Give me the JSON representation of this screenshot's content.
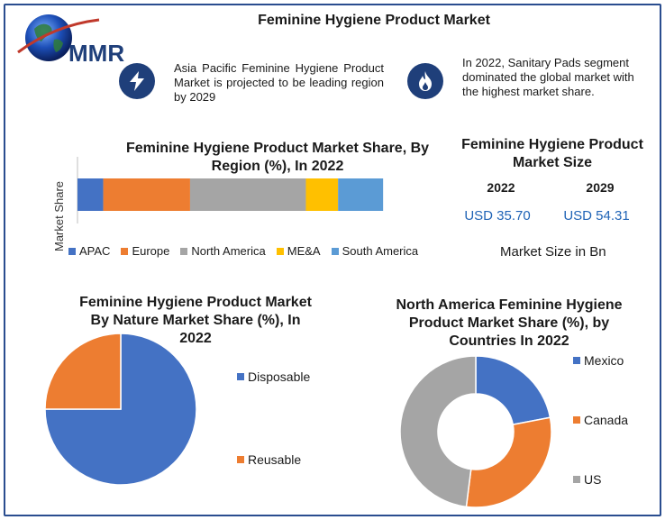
{
  "header": {
    "logo_text": "MMR",
    "title": "Feminine Hygiene Product Market"
  },
  "callouts": [
    {
      "icon": "lightning-bolt-icon",
      "text": "Asia Pacific Feminine Hygiene Product Market is projected to be leading region by 2029"
    },
    {
      "icon": "flame-icon",
      "text": "In 2022, Sanitary Pads segment dominated the global market with the highest market share."
    }
  ],
  "market_size": {
    "title": "Feminine Hygiene Product Market Size",
    "years": [
      "2022",
      "2029"
    ],
    "values": [
      "USD 35.70",
      "USD 54.31"
    ],
    "unit_label": "Market Size in Bn",
    "value_color": "#1f63b6"
  },
  "chart_data": [
    {
      "type": "bar",
      "orientation": "horizontal-stacked",
      "title": "Feminine Hygiene Product Market Share, By Region (%), In 2022",
      "ylabel": "Market Share",
      "xlim": [
        0,
        100
      ],
      "series": [
        {
          "name": "APAC",
          "values": [
            8
          ],
          "color": "#4472c4"
        },
        {
          "name": "Europe",
          "values": [
            27
          ],
          "color": "#ed7d31"
        },
        {
          "name": "North America",
          "values": [
            36
          ],
          "color": "#a5a5a5"
        },
        {
          "name": "ME&A",
          "values": [
            10
          ],
          "color": "#ffc000"
        },
        {
          "name": "South America",
          "values": [
            14
          ],
          "color": "#5b9bd5"
        }
      ],
      "legend": "bottom"
    },
    {
      "type": "pie",
      "title": "Feminine Hygiene Product Market By Nature Market Share (%), In 2022",
      "categories": [
        "Disposable",
        "Reusable"
      ],
      "values": [
        75,
        25
      ],
      "colors": [
        "#4472c4",
        "#ed7d31"
      ],
      "legend": "right"
    },
    {
      "type": "pie",
      "variant": "donut",
      "title": "North America Feminine Hygiene Product Market Share (%), by Countries In 2022",
      "categories": [
        "Mexico",
        "Canada",
        "US"
      ],
      "values": [
        22,
        30,
        48
      ],
      "colors": [
        "#4472c4",
        "#ed7d31",
        "#a5a5a5"
      ],
      "legend": "right"
    }
  ]
}
